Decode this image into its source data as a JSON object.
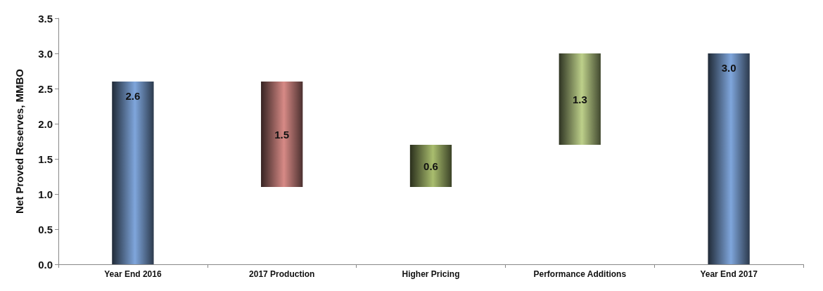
{
  "chart_data": {
    "type": "bar",
    "ylabel": "Net Proved Reserves, MMBO",
    "categories": [
      "Year End 2016",
      "2017 Production",
      "Higher Pricing",
      "Performance Additions",
      "Year End 2017"
    ],
    "values": [
      2.6,
      1.5,
      0.6,
      1.3,
      3.0
    ],
    "base": [
      0,
      1.1,
      1.1,
      1.7,
      0
    ],
    "colors": [
      "#7fa6dc",
      "#d78a86",
      "#a9bd6e",
      "#bdd08a",
      "#7fa6dc"
    ],
    "value_labels": [
      "2.6",
      "1.5",
      "0.6",
      "1.3",
      "3.0"
    ],
    "ylim": [
      0,
      3.5
    ],
    "yticks": [
      {
        "value": 0,
        "label": "0.0"
      },
      {
        "value": 0.5,
        "label": "0.5"
      },
      {
        "value": 1,
        "label": "1.0"
      },
      {
        "value": 1.5,
        "label": "1.5"
      },
      {
        "value": 2,
        "label": "2.0"
      },
      {
        "value": 2.5,
        "label": "2.5"
      },
      {
        "value": 3,
        "label": "3.0"
      },
      {
        "value": 3.5,
        "label": "3.5"
      }
    ],
    "grid": false
  }
}
